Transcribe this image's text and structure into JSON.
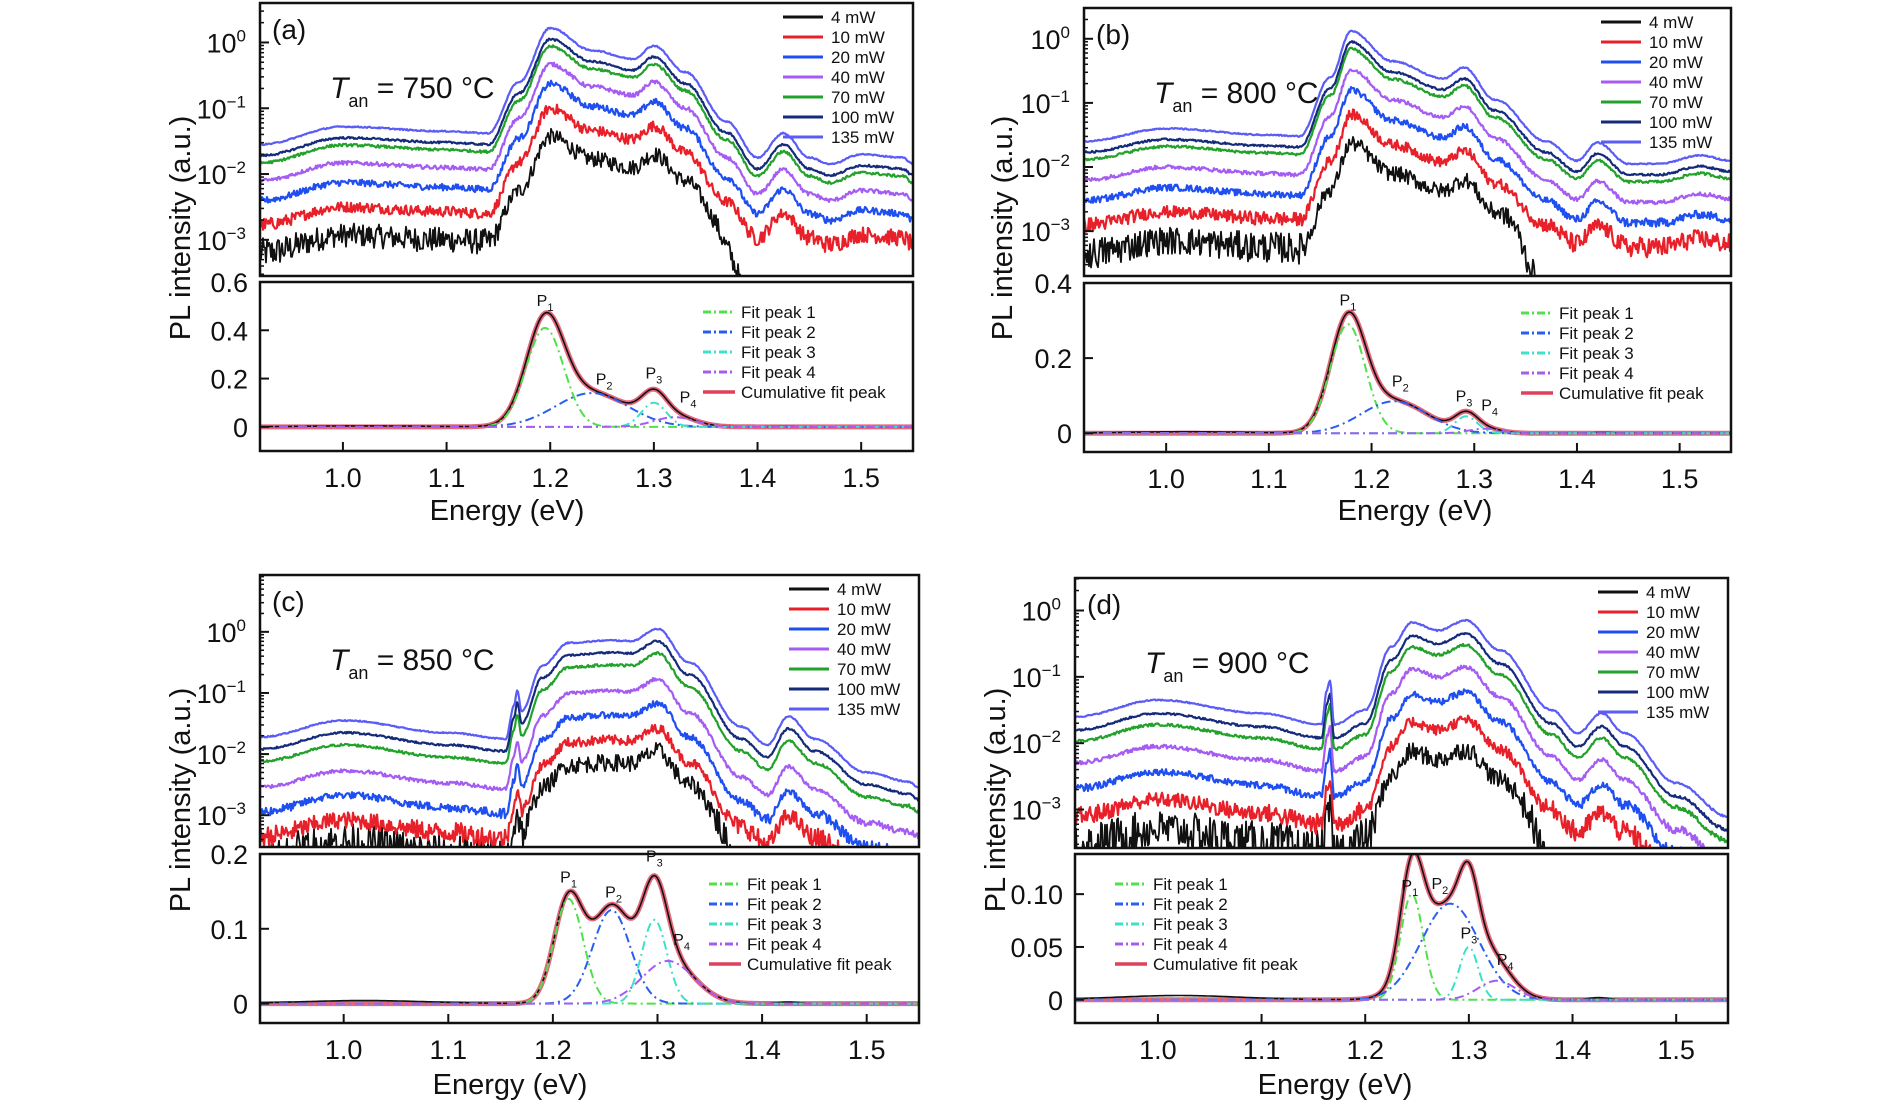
{
  "chart_data": [
    {
      "id": "a",
      "type": "line",
      "panel_label": "(a)",
      "annotation": {
        "symbol": "T",
        "subscript": "an",
        "text": " = 750 °C"
      },
      "xlabel": "Energy (eV)",
      "ylabel": "PL intensity (a.u.)",
      "xlim": [
        0.92,
        1.55
      ],
      "x_ticks": [
        "1.0",
        "1.1",
        "1.2",
        "1.3",
        "1.4",
        "1.5"
      ],
      "x_tick_values": [
        1.0,
        1.1,
        1.2,
        1.3,
        1.4,
        1.5
      ],
      "top": {
        "yscale": "log",
        "ylim_log10": [
          -3.55,
          0.6
        ],
        "y_ticks": [
          {
            "base": "10",
            "exp": "0",
            "value": 0
          },
          {
            "base": "10",
            "exp": "−1",
            "value": -1
          },
          {
            "base": "10",
            "exp": "−2",
            "value": -2
          },
          {
            "base": "10",
            "exp": "−3",
            "value": -3
          }
        ],
        "shape_x": [
          0.92,
          1.0,
          1.1,
          1.14,
          1.17,
          1.2,
          1.24,
          1.28,
          1.3,
          1.33,
          1.37,
          1.4,
          1.425,
          1.45,
          1.47,
          1.5,
          1.54,
          1.55
        ],
        "shape_log10_135mW": [
          -1.55,
          -1.28,
          -1.35,
          -1.38,
          -0.6,
          0.22,
          -0.12,
          -0.25,
          -0.05,
          -0.45,
          -1.2,
          -1.75,
          -1.38,
          -1.75,
          -1.85,
          -1.7,
          -1.75,
          -1.85
        ],
        "black_cutoff_x": 1.36,
        "legend_position": "top-right",
        "series": [
          {
            "name": "4 mW",
            "color": "#111111",
            "offset_log10": -1.65,
            "noise": 0.12
          },
          {
            "name": "10 mW",
            "color": "#e8202a",
            "offset_log10": -1.22,
            "noise": 0.08
          },
          {
            "name": "20 mW",
            "color": "#1f4ff0",
            "offset_log10": -0.85,
            "noise": 0.05
          },
          {
            "name": "40 mW",
            "color": "#a45cf2",
            "offset_log10": -0.55,
            "noise": 0.03
          },
          {
            "name": "70 mW",
            "color": "#22a22a",
            "offset_log10": -0.28,
            "noise": 0.02
          },
          {
            "name": "100 mW",
            "color": "#142a7a",
            "offset_log10": -0.17,
            "noise": 0.015
          },
          {
            "name": "135 mW",
            "color": "#5b5cf5",
            "offset_log10": 0.0,
            "noise": 0.01
          }
        ]
      },
      "bottom": {
        "yscale": "linear",
        "ylim": [
          -0.1,
          0.6
        ],
        "y_ticks": [
          "0.6",
          "0.4",
          "0.2",
          "0"
        ],
        "y_tick_values": [
          0.6,
          0.4,
          0.2,
          0.0
        ],
        "legend_position": "right",
        "fit_peaks": [
          {
            "name": "Fit peak 1",
            "label": "P",
            "index": "1",
            "center": 1.195,
            "amplitude": 0.41,
            "width": 0.018,
            "color": "#4fe04a"
          },
          {
            "name": "Fit peak 2",
            "label": "P",
            "index": "2",
            "center": 1.24,
            "amplitude": 0.14,
            "width": 0.035,
            "color": "#2a5ef0"
          },
          {
            "name": "Fit peak 3",
            "label": "P",
            "index": "3",
            "center": 1.3,
            "amplitude": 0.1,
            "width": 0.012,
            "color": "#3de0c8"
          },
          {
            "name": "Fit peak 4",
            "label": "P",
            "index": "4",
            "center": 1.32,
            "amplitude": 0.04,
            "width": 0.02,
            "color": "#a45cf2"
          }
        ],
        "cumulative": {
          "name": "Cumulative fit peak",
          "color": "#e0405a"
        },
        "peak_label_positions": [
          [
            1.195,
            0.5
          ],
          [
            1.252,
            0.175
          ],
          [
            1.3,
            0.2
          ],
          [
            1.333,
            0.1
          ]
        ]
      }
    },
    {
      "id": "b",
      "type": "line",
      "panel_label": "(b)",
      "annotation": {
        "symbol": "T",
        "subscript": "an",
        "text": " = 800 °C"
      },
      "xlabel": "Energy (eV)",
      "ylabel": "PL intensity (a.u.)",
      "xlim": [
        0.92,
        1.55
      ],
      "x_ticks": [
        "1.0",
        "1.1",
        "1.2",
        "1.3",
        "1.4",
        "1.5"
      ],
      "x_tick_values": [
        1.0,
        1.1,
        1.2,
        1.3,
        1.4,
        1.5
      ],
      "top": {
        "yscale": "log",
        "ylim_log10": [
          -3.7,
          0.48
        ],
        "y_ticks": [
          {
            "base": "10",
            "exp": "0",
            "value": 0
          },
          {
            "base": "10",
            "exp": "−1",
            "value": -1
          },
          {
            "base": "10",
            "exp": "−2",
            "value": -2
          },
          {
            "base": "10",
            "exp": "−3",
            "value": -3
          }
        ],
        "shape_x": [
          0.92,
          1.0,
          1.1,
          1.13,
          1.16,
          1.18,
          1.22,
          1.27,
          1.29,
          1.32,
          1.37,
          1.4,
          1.42,
          1.45,
          1.48,
          1.52,
          1.55
        ],
        "shape_log10_135mW": [
          -1.6,
          -1.4,
          -1.5,
          -1.52,
          -0.6,
          0.12,
          -0.35,
          -0.62,
          -0.45,
          -0.95,
          -1.6,
          -1.9,
          -1.62,
          -1.95,
          -1.95,
          -1.82,
          -1.9
        ],
        "black_cutoff_x": 1.34,
        "legend_position": "top-right",
        "series": [
          {
            "name": "4 mW",
            "color": "#111111",
            "offset_log10": -1.75,
            "noise": 0.12
          },
          {
            "name": "10 mW",
            "color": "#e8202a",
            "offset_log10": -1.3,
            "noise": 0.08
          },
          {
            "name": "20 mW",
            "color": "#1f4ff0",
            "offset_log10": -0.92,
            "noise": 0.05
          },
          {
            "name": "40 mW",
            "color": "#a45cf2",
            "offset_log10": -0.6,
            "noise": 0.03
          },
          {
            "name": "70 mW",
            "color": "#22a22a",
            "offset_log10": -0.28,
            "noise": 0.02
          },
          {
            "name": "100 mW",
            "color": "#142a7a",
            "offset_log10": -0.17,
            "noise": 0.015
          },
          {
            "name": "135 mW",
            "color": "#5b5cf5",
            "offset_log10": 0.0,
            "noise": 0.01
          }
        ]
      },
      "bottom": {
        "yscale": "linear",
        "ylim": [
          -0.05,
          0.4
        ],
        "y_ticks": [
          "0.4",
          "0.2",
          "0"
        ],
        "y_tick_values": [
          0.4,
          0.2,
          0.0
        ],
        "legend_position": "right",
        "fit_peaks": [
          {
            "name": "Fit peak 1",
            "label": "P",
            "index": "1",
            "center": 1.177,
            "amplitude": 0.29,
            "width": 0.017,
            "color": "#4fe04a"
          },
          {
            "name": "Fit peak 2",
            "label": "P",
            "index": "2",
            "center": 1.222,
            "amplitude": 0.085,
            "width": 0.032,
            "color": "#2a5ef0"
          },
          {
            "name": "Fit peak 3",
            "label": "P",
            "index": "3",
            "center": 1.292,
            "amplitude": 0.045,
            "width": 0.011,
            "color": "#3de0c8"
          },
          {
            "name": "Fit peak 4",
            "label": "P",
            "index": "4",
            "center": 1.31,
            "amplitude": 0.012,
            "width": 0.015,
            "color": "#a45cf2"
          }
        ],
        "cumulative": {
          "name": "Cumulative fit peak",
          "color": "#e0405a"
        },
        "peak_label_positions": [
          [
            1.177,
            0.34
          ],
          [
            1.228,
            0.125
          ],
          [
            1.29,
            0.085
          ],
          [
            1.315,
            0.06
          ]
        ]
      }
    },
    {
      "id": "c",
      "type": "line",
      "panel_label": "(c)",
      "annotation": {
        "symbol": "T",
        "subscript": "an",
        "text": " = 850 °C"
      },
      "xlabel": "Energy (eV)",
      "ylabel": "PL intensity (a.u.)",
      "xlim": [
        0.92,
        1.55
      ],
      "x_ticks": [
        "1.0",
        "1.1",
        "1.2",
        "1.3",
        "1.4",
        "1.5"
      ],
      "x_tick_values": [
        1.0,
        1.1,
        1.2,
        1.3,
        1.4,
        1.5
      ],
      "top": {
        "yscale": "log",
        "ylim_log10": [
          -3.52,
          0.93
        ],
        "y_ticks": [
          {
            "base": "10",
            "exp": "0",
            "value": 0
          },
          {
            "base": "10",
            "exp": "−1",
            "value": -1
          },
          {
            "base": "10",
            "exp": "−2",
            "value": -2
          },
          {
            "base": "10",
            "exp": "−3",
            "value": -3
          }
        ],
        "shape_x": [
          0.92,
          1.0,
          1.1,
          1.155,
          1.163,
          1.166,
          1.17,
          1.19,
          1.215,
          1.255,
          1.275,
          1.3,
          1.33,
          1.38,
          1.405,
          1.425,
          1.45,
          1.5,
          1.54,
          1.55
        ],
        "shape_log10_135mW": [
          -1.72,
          -1.45,
          -1.65,
          -1.75,
          -1.2,
          -0.95,
          -1.3,
          -0.55,
          -0.18,
          -0.14,
          -0.15,
          0.05,
          -0.5,
          -1.55,
          -1.85,
          -1.38,
          -1.75,
          -2.3,
          -2.45,
          -2.55
        ],
        "black_cutoff_x": 1.36,
        "legend_position": "top-right",
        "series": [
          {
            "name": "4 mW",
            "color": "#111111",
            "offset_log10": -2.0,
            "noise": 0.14
          },
          {
            "name": "10 mW",
            "color": "#e8202a",
            "offset_log10": -1.63,
            "noise": 0.08
          },
          {
            "name": "20 mW",
            "color": "#1f4ff0",
            "offset_log10": -1.22,
            "noise": 0.05
          },
          {
            "name": "40 mW",
            "color": "#a45cf2",
            "offset_log10": -0.82,
            "noise": 0.03
          },
          {
            "name": "70 mW",
            "color": "#22a22a",
            "offset_log10": -0.4,
            "noise": 0.02
          },
          {
            "name": "100 mW",
            "color": "#142a7a",
            "offset_log10": -0.2,
            "noise": 0.015
          },
          {
            "name": "135 mW",
            "color": "#5b5cf5",
            "offset_log10": 0.0,
            "noise": 0.01
          }
        ]
      },
      "bottom": {
        "yscale": "linear",
        "ylim": [
          -0.026,
          0.2
        ],
        "y_ticks": [
          "0.2",
          "0.1",
          "0"
        ],
        "y_tick_values": [
          0.2,
          0.1,
          0.0
        ],
        "legend_position": "right",
        "fit_peaks": [
          {
            "name": "Fit peak 1",
            "label": "P",
            "index": "1",
            "center": 1.215,
            "amplitude": 0.14,
            "width": 0.014,
            "color": "#4fe04a"
          },
          {
            "name": "Fit peak 2",
            "label": "P",
            "index": "2",
            "center": 1.256,
            "amplitude": 0.125,
            "width": 0.018,
            "color": "#2a5ef0"
          },
          {
            "name": "Fit peak 3",
            "label": "P",
            "index": "3",
            "center": 1.297,
            "amplitude": 0.112,
            "width": 0.012,
            "color": "#3de0c8"
          },
          {
            "name": "Fit peak 4",
            "label": "P",
            "index": "4",
            "center": 1.31,
            "amplitude": 0.057,
            "width": 0.025,
            "color": "#a45cf2"
          }
        ],
        "cumulative": {
          "name": "Cumulative fit peak",
          "color": "#e0405a"
        },
        "peak_label_positions": [
          [
            1.215,
            0.162
          ],
          [
            1.258,
            0.142
          ],
          [
            1.297,
            0.19
          ],
          [
            1.323,
            0.078
          ]
        ]
      }
    },
    {
      "id": "d",
      "type": "line",
      "panel_label": "(d)",
      "annotation": {
        "symbol": "T",
        "subscript": "an",
        "text": " = 900 °C"
      },
      "xlabel": "Energy (eV)",
      "ylabel": "PL intensity (a.u.)",
      "xlim": [
        0.92,
        1.55
      ],
      "x_ticks": [
        "1.0",
        "1.1",
        "1.2",
        "1.3",
        "1.4",
        "1.5"
      ],
      "x_tick_values": [
        1.0,
        1.1,
        1.2,
        1.3,
        1.4,
        1.5
      ],
      "top": {
        "yscale": "log",
        "ylim_log10": [
          -3.58,
          0.49
        ],
        "y_ticks": [
          {
            "base": "10",
            "exp": "0",
            "value": 0
          },
          {
            "base": "10",
            "exp": "−1",
            "value": -1
          },
          {
            "base": "10",
            "exp": "−2",
            "value": -2
          },
          {
            "base": "10",
            "exp": "−3",
            "value": -3
          }
        ],
        "shape_x": [
          0.92,
          1.0,
          1.1,
          1.158,
          1.163,
          1.166,
          1.17,
          1.2,
          1.225,
          1.245,
          1.27,
          1.297,
          1.33,
          1.38,
          1.405,
          1.428,
          1.45,
          1.5,
          1.55
        ],
        "shape_log10_135mW": [
          -1.6,
          -1.35,
          -1.55,
          -1.72,
          -1.2,
          -1.05,
          -1.72,
          -1.5,
          -0.55,
          -0.18,
          -0.3,
          -0.15,
          -0.6,
          -1.5,
          -1.85,
          -1.55,
          -1.85,
          -2.6,
          -3.1
        ],
        "black_cutoff_x": 1.36,
        "legend_position": "top-right",
        "series": [
          {
            "name": "4 mW",
            "color": "#111111",
            "offset_log10": -1.95,
            "noise": 0.14
          },
          {
            "name": "10 mW",
            "color": "#e8202a",
            "offset_log10": -1.5,
            "noise": 0.08
          },
          {
            "name": "20 mW",
            "color": "#1f4ff0",
            "offset_log10": -1.08,
            "noise": 0.05
          },
          {
            "name": "40 mW",
            "color": "#a45cf2",
            "offset_log10": -0.7,
            "noise": 0.03
          },
          {
            "name": "70 mW",
            "color": "#22a22a",
            "offset_log10": -0.37,
            "noise": 0.02
          },
          {
            "name": "100 mW",
            "color": "#142a7a",
            "offset_log10": -0.2,
            "noise": 0.015
          },
          {
            "name": "135 mW",
            "color": "#5b5cf5",
            "offset_log10": 0.0,
            "noise": 0.01
          }
        ]
      },
      "bottom": {
        "yscale": "linear",
        "ylim": [
          -0.022,
          0.138
        ],
        "y_ticks": [
          "0.10",
          "0.05",
          "0"
        ],
        "y_tick_values": [
          0.1,
          0.05,
          0.0
        ],
        "legend_position": "left",
        "fit_peaks": [
          {
            "name": "Fit peak 1",
            "label": "P",
            "index": "1",
            "center": 1.245,
            "amplitude": 0.1,
            "width": 0.011,
            "color": "#4fe04a"
          },
          {
            "name": "Fit peak 2",
            "label": "P",
            "index": "2",
            "center": 1.282,
            "amplitude": 0.091,
            "width": 0.028,
            "color": "#2a5ef0"
          },
          {
            "name": "Fit peak 3",
            "label": "P",
            "index": "3",
            "center": 1.3,
            "amplitude": 0.05,
            "width": 0.009,
            "color": "#3de0c8"
          },
          {
            "name": "Fit peak 4",
            "label": "P",
            "index": "4",
            "center": 1.327,
            "amplitude": 0.018,
            "width": 0.018,
            "color": "#a45cf2"
          }
        ],
        "cumulative": {
          "name": "Cumulative fit peak",
          "color": "#e0405a"
        },
        "peak_label_positions": [
          [
            1.243,
            0.103
          ],
          [
            1.272,
            0.105
          ],
          [
            1.3,
            0.058
          ],
          [
            1.335,
            0.033
          ]
        ]
      }
    }
  ]
}
